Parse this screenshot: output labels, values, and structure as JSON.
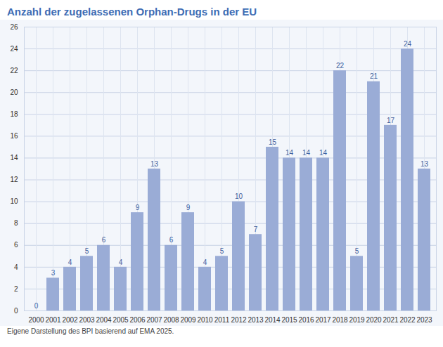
{
  "chart_data": {
    "type": "bar",
    "title": "Anzahl der zugelassenen Orphan-Drugs in der EU",
    "caption": "Eigene Darstellung des BPI basierend auf EMA 2025.",
    "categories": [
      "2000",
      "2001",
      "2002",
      "2003",
      "2004",
      "2005",
      "2006",
      "2007",
      "2008",
      "2009",
      "2010",
      "2011",
      "2012",
      "2013",
      "2014",
      "2015",
      "2016",
      "2017",
      "2018",
      "2019",
      "2020",
      "2021",
      "2022",
      "2023"
    ],
    "values": [
      0,
      3,
      4,
      5,
      6,
      4,
      9,
      13,
      6,
      9,
      4,
      5,
      10,
      7,
      15,
      14,
      14,
      14,
      22,
      5,
      21,
      17,
      24,
      13
    ],
    "color": "#9aacd6",
    "ylim": [
      0,
      26
    ],
    "yticks": [
      0,
      2,
      4,
      6,
      8,
      10,
      12,
      14,
      16,
      18,
      20,
      22,
      24,
      26
    ],
    "grid": true,
    "data_labels": true
  }
}
